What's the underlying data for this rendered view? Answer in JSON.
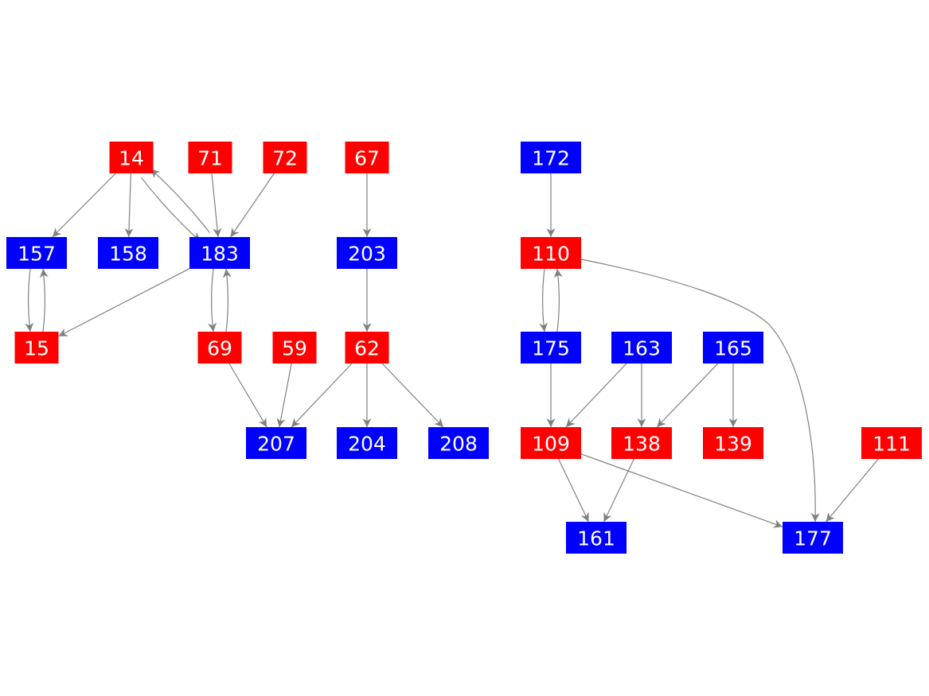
{
  "colors": {
    "red": "#ff0000",
    "blue": "#0000ff",
    "edge": "#808080",
    "label": "#ffffff"
  },
  "nodes": [
    {
      "id": "14",
      "color": "red"
    },
    {
      "id": "71",
      "color": "red"
    },
    {
      "id": "72",
      "color": "red"
    },
    {
      "id": "67",
      "color": "red"
    },
    {
      "id": "172",
      "color": "blue"
    },
    {
      "id": "157",
      "color": "blue"
    },
    {
      "id": "158",
      "color": "blue"
    },
    {
      "id": "183",
      "color": "blue"
    },
    {
      "id": "203",
      "color": "blue"
    },
    {
      "id": "110",
      "color": "red"
    },
    {
      "id": "15",
      "color": "red"
    },
    {
      "id": "69",
      "color": "red"
    },
    {
      "id": "59",
      "color": "red"
    },
    {
      "id": "62",
      "color": "red"
    },
    {
      "id": "175",
      "color": "blue"
    },
    {
      "id": "163",
      "color": "blue"
    },
    {
      "id": "165",
      "color": "blue"
    },
    {
      "id": "207",
      "color": "blue"
    },
    {
      "id": "204",
      "color": "blue"
    },
    {
      "id": "208",
      "color": "blue"
    },
    {
      "id": "109",
      "color": "red"
    },
    {
      "id": "138",
      "color": "red"
    },
    {
      "id": "139",
      "color": "red"
    },
    {
      "id": "111",
      "color": "red"
    },
    {
      "id": "161",
      "color": "blue"
    },
    {
      "id": "177",
      "color": "blue"
    }
  ],
  "edges": [
    [
      "14",
      "157"
    ],
    [
      "14",
      "158"
    ],
    [
      "14",
      "183"
    ],
    [
      "183",
      "14"
    ],
    [
      "71",
      "183"
    ],
    [
      "72",
      "183"
    ],
    [
      "157",
      "15"
    ],
    [
      "15",
      "157"
    ],
    [
      "183",
      "15"
    ],
    [
      "183",
      "69"
    ],
    [
      "69",
      "183"
    ],
    [
      "69",
      "207"
    ],
    [
      "59",
      "207"
    ],
    [
      "62",
      "207"
    ],
    [
      "67",
      "203"
    ],
    [
      "203",
      "62"
    ],
    [
      "62",
      "204"
    ],
    [
      "62",
      "208"
    ],
    [
      "172",
      "110"
    ],
    [
      "110",
      "175"
    ],
    [
      "175",
      "110"
    ],
    [
      "110",
      "177"
    ],
    [
      "175",
      "109"
    ],
    [
      "163",
      "109"
    ],
    [
      "163",
      "138"
    ],
    [
      "165",
      "138"
    ],
    [
      "165",
      "139"
    ],
    [
      "109",
      "161"
    ],
    [
      "138",
      "161"
    ],
    [
      "109",
      "177"
    ],
    [
      "111",
      "177"
    ]
  ]
}
